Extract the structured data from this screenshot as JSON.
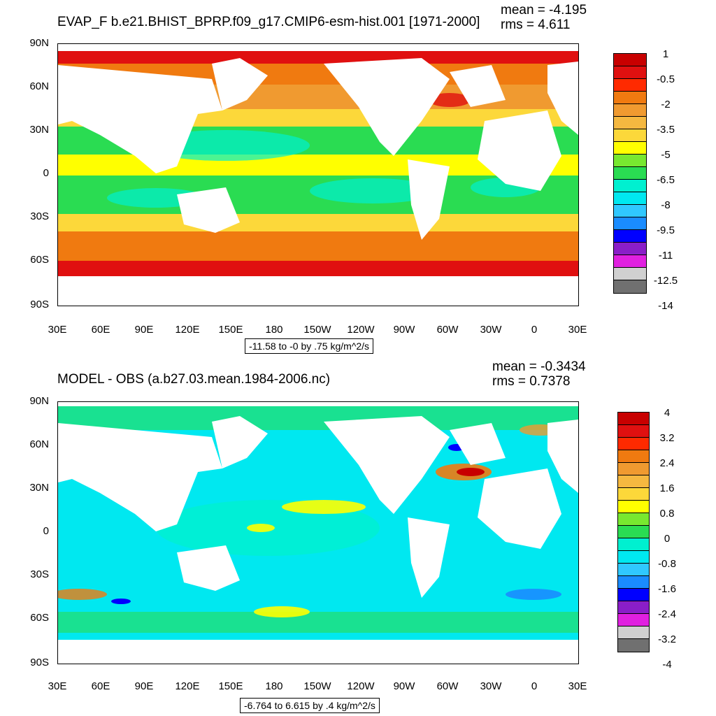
{
  "panel1": {
    "title": "EVAP_F b.e21.BHIST_BPRP.f09_g17.CMIP6-esm-hist.001 [1971-2000]",
    "mean": "mean = -4.195",
    "rms": "rms = 4.611",
    "info": "-11.58 to -0 by .75 kg/m^2/s",
    "lat_labels": [
      "90N",
      "60N",
      "30N",
      "0",
      "30S",
      "60S",
      "90S"
    ],
    "lon_labels": [
      "30E",
      "60E",
      "90E",
      "120E",
      "150E",
      "180",
      "150W",
      "120W",
      "90W",
      "60W",
      "30W",
      "0",
      "30E"
    ],
    "colorbar": {
      "colors": [
        "#c80000",
        "#e01010",
        "#ff2a00",
        "#f07a10",
        "#f09a30",
        "#f5b840",
        "#fcd83a",
        "#ffff00",
        "#78e830",
        "#2adc52",
        "#00f0d0",
        "#00e8f0",
        "#30c8ff",
        "#1a8cff",
        "#0000ff",
        "#8a1ec8",
        "#e020e0",
        "#d0d0d0",
        "#707070"
      ],
      "labels": [
        "1",
        "-0.5",
        "-2",
        "-3.5",
        "-5",
        "-6.5",
        "-8",
        "-9.5",
        "-11",
        "-12.5",
        "-14"
      ]
    }
  },
  "panel2": {
    "title": "MODEL - OBS (a.b27.03.mean.1984-2006.nc)",
    "mean": "mean = -0.3434",
    "rms": "rms = 0.7378",
    "info": "-6.764 to 6.615 by .4 kg/m^2/s",
    "lat_labels": [
      "90N",
      "60N",
      "30N",
      "0",
      "30S",
      "60S",
      "90S"
    ],
    "lon_labels": [
      "30E",
      "60E",
      "90E",
      "120E",
      "150E",
      "180",
      "150W",
      "120W",
      "90W",
      "60W",
      "30W",
      "0",
      "30E"
    ],
    "colorbar": {
      "colors": [
        "#c80000",
        "#e01010",
        "#ff2a00",
        "#f07a10",
        "#f09a30",
        "#f5b840",
        "#fcd83a",
        "#ffff00",
        "#78e830",
        "#2adc52",
        "#00f0d0",
        "#00e8f0",
        "#30c8ff",
        "#1a8cff",
        "#0000ff",
        "#8a1ec8",
        "#e020e0",
        "#d0d0d0",
        "#707070"
      ],
      "labels": [
        "4",
        "3.2",
        "2.4",
        "1.6",
        "0.8",
        "0",
        "-0.8",
        "-1.6",
        "-2.4",
        "-3.2",
        "-4"
      ]
    }
  }
}
